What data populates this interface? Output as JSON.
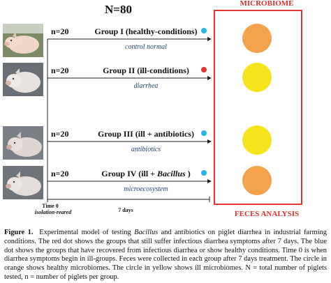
{
  "header": {
    "total_n": "N=80"
  },
  "box": {
    "top_label": "MICROBIOME",
    "bottom_label": "FECES ANALYSIS"
  },
  "colors": {
    "healthy_microbiome": "#f4a24b",
    "ill_microbiome": "#f5e51d",
    "recovered_dot": "#2ab3e6",
    "ill_dot": "#e2362f",
    "box_border": "#e2362f"
  },
  "groups": [
    {
      "n": "n=20",
      "name": "Group I (healthy-conditions)",
      "treatment": "control normal",
      "status": "recovered",
      "microbiome": "healthy"
    },
    {
      "n": "n=20",
      "name": "Group II (ill-conditions)",
      "treatment": "diarrhea",
      "status": "ill",
      "microbiome": "ill"
    },
    {
      "n": "n=20",
      "name": "Group III (ill + antibiotics)",
      "treatment": "antibiotics",
      "status": "recovered",
      "microbiome": "ill"
    },
    {
      "n": "n=20",
      "name_prefix": "Group IV (ill + ",
      "name_italic": "Bacillus",
      "name_suffix": " )",
      "treatment": "microecosystem",
      "status": "recovered",
      "microbiome": "healthy"
    }
  ],
  "timeline": {
    "time0": "Time 0",
    "time0_sub": "isolation-reared",
    "duration": "7 days"
  },
  "caption": {
    "label": "Figure 1.",
    "text_1": "Experimental model of testing ",
    "italic_1": "Bacillus",
    "text_2": " and antibiotics on piglet diarrhea in industrial farming conditions. The red dot shows the groups that still suffer infectious diarrhea symptoms after 7 days. The blue dot shows the groups that have recovered from infectious diarrhea or show healthy conditions. Time 0 is when diarrhea symptoms begin in ill-groups. Feces were collected in each group after 7 days treatment. The circle in orange shows healthy microbiomes. The circle in yellow shows ill microbiomes. N = total number of piglets tested, n = number of piglets per group."
  }
}
